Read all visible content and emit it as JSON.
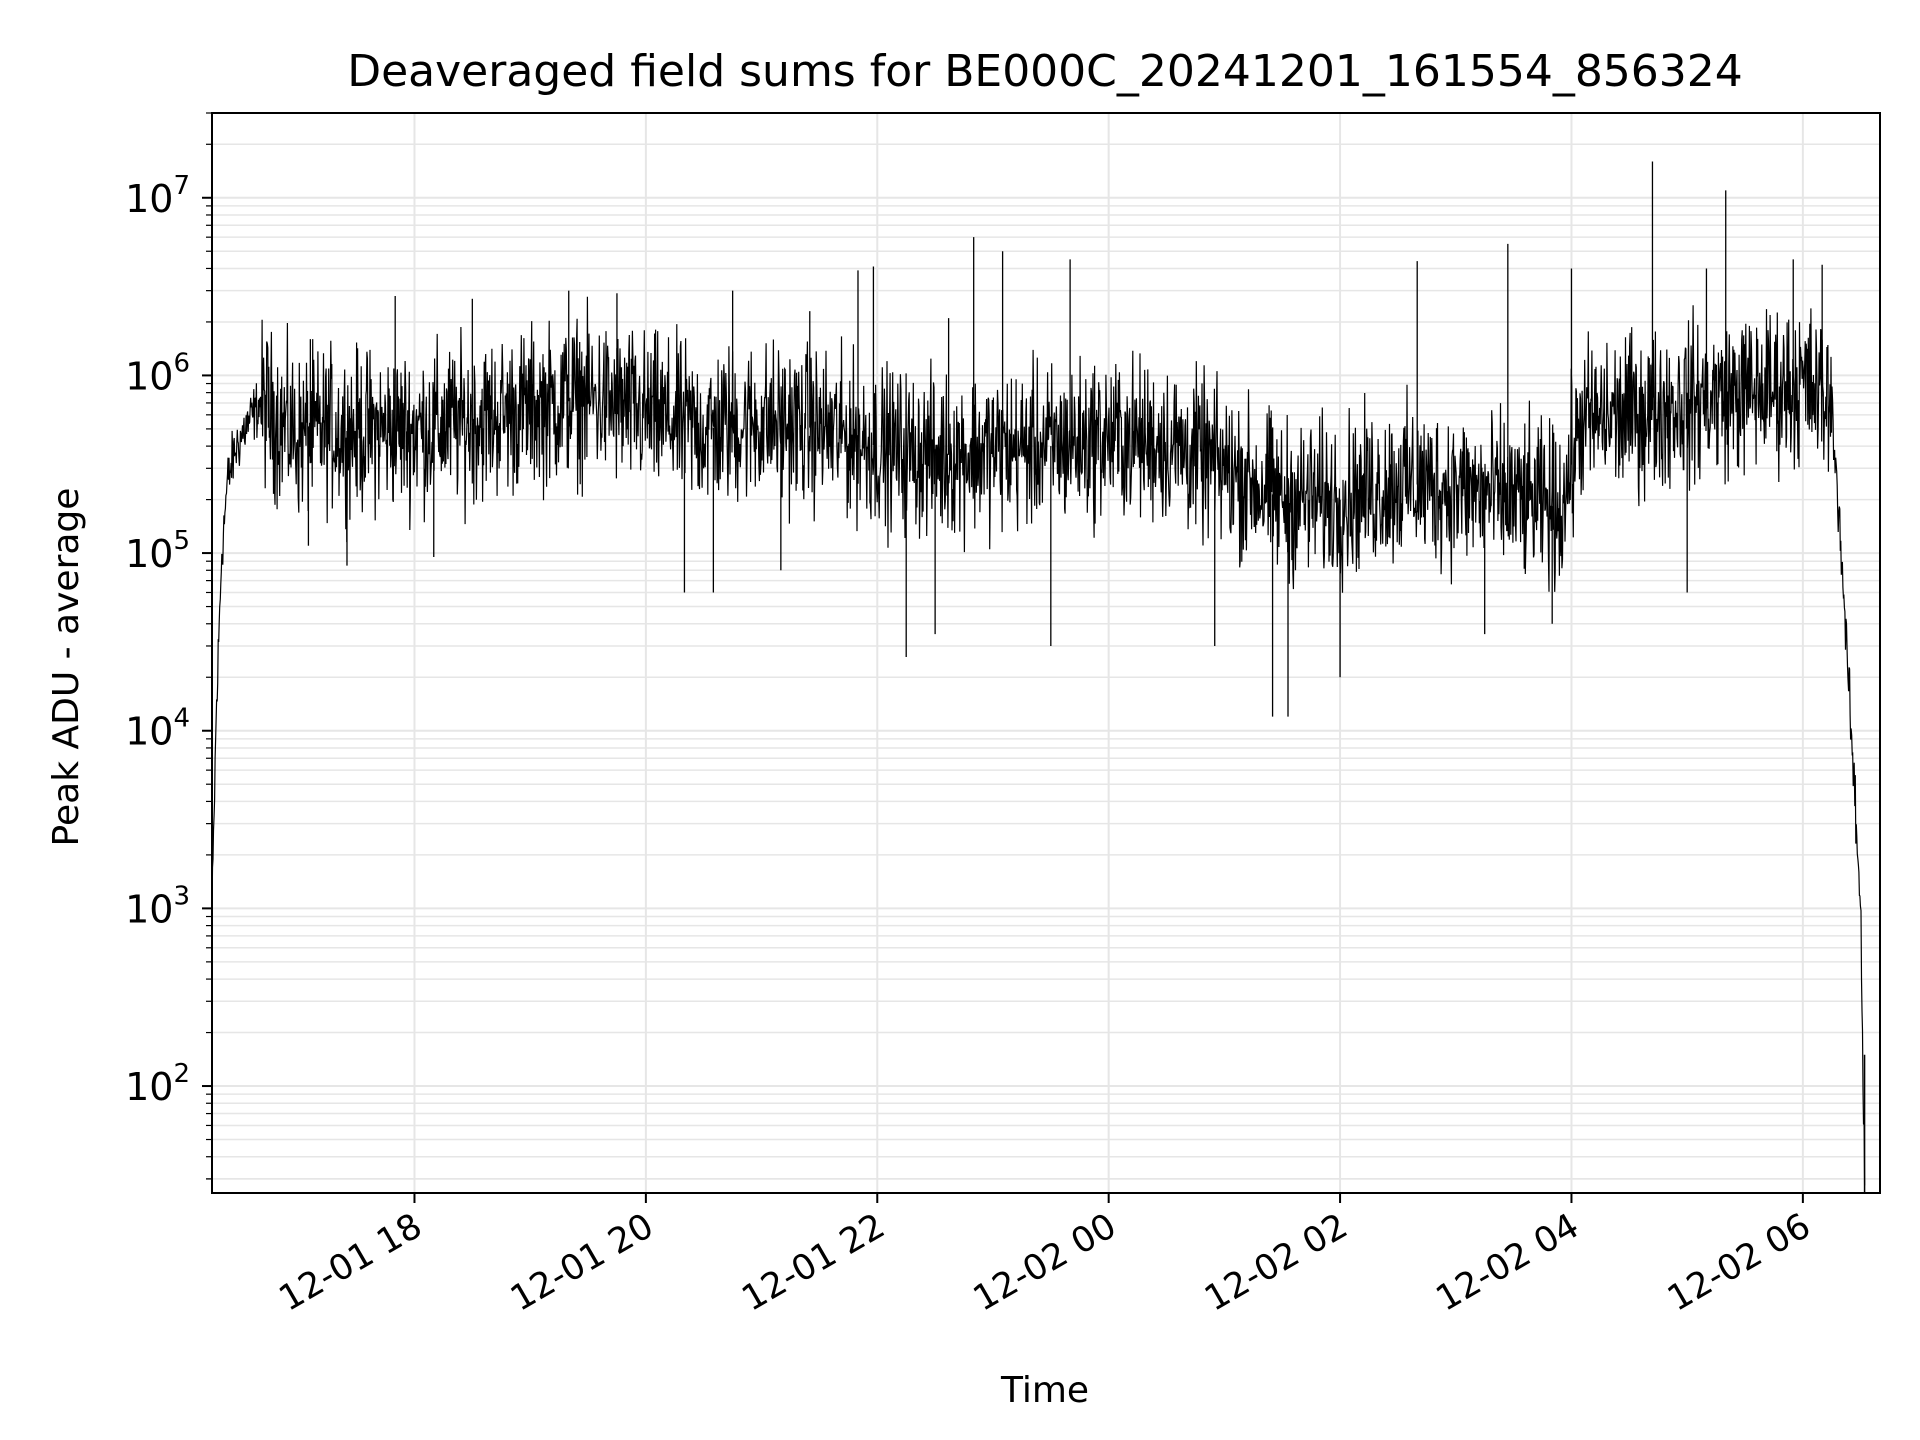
{
  "chart_data": {
    "type": "line",
    "title": "Deaveraged field sums for BE000C_20241201_161554_856324",
    "xlabel": "Time",
    "ylabel": "Peak ADU - average",
    "yscale": "log",
    "ylim": [
      25,
      30000000
    ],
    "xlim": [
      "2024-12-01 16:15",
      "2024-12-02 06:40"
    ],
    "grid": true,
    "line_color": "#000000",
    "grid_color": "#e6e6e6",
    "x_ticks": [
      {
        "value": "2024-12-01 18:00",
        "label": "12-01 18"
      },
      {
        "value": "2024-12-01 20:00",
        "label": "12-01 20"
      },
      {
        "value": "2024-12-01 22:00",
        "label": "12-01 22"
      },
      {
        "value": "2024-12-02 00:00",
        "label": "12-02 00"
      },
      {
        "value": "2024-12-02 02:00",
        "label": "12-02 02"
      },
      {
        "value": "2024-12-02 04:00",
        "label": "12-02 04"
      },
      {
        "value": "2024-12-02 06:00",
        "label": "12-02 06"
      }
    ],
    "y_ticks": [
      {
        "value": 100,
        "base": "10",
        "exp": "2"
      },
      {
        "value": 1000,
        "base": "10",
        "exp": "3"
      },
      {
        "value": 10000,
        "base": "10",
        "exp": "4"
      },
      {
        "value": 100000,
        "base": "10",
        "exp": "5"
      },
      {
        "value": 1000000,
        "base": "10",
        "exp": "6"
      },
      {
        "value": 10000000,
        "base": "10",
        "exp": "7"
      }
    ],
    "series": [
      {
        "x": [
          "2024-12-01 16:15",
          "2024-12-01 16:17",
          "2024-12-01 16:20",
          "2024-12-01 16:23",
          "2024-12-01 16:27",
          "2024-12-01 16:32",
          "2024-12-01 16:40",
          "2024-12-01 16:50",
          "2024-12-01 17:00",
          "2024-12-01 17:15",
          "2024-12-01 17:30",
          "2024-12-01 18:00",
          "2024-12-01 18:30",
          "2024-12-01 19:00",
          "2024-12-01 19:30",
          "2024-12-01 20:00",
          "2024-12-01 20:30",
          "2024-12-01 21:00",
          "2024-12-01 21:30",
          "2024-12-01 22:00",
          "2024-12-01 22:30",
          "2024-12-01 23:00",
          "2024-12-01 23:30",
          "2024-12-02 00:00",
          "2024-12-02 00:30",
          "2024-12-02 01:00",
          "2024-12-02 01:30",
          "2024-12-02 02:00",
          "2024-12-02 02:30",
          "2024-12-02 03:00",
          "2024-12-02 03:30",
          "2024-12-02 03:55",
          "2024-12-02 04:05",
          "2024-12-02 04:30",
          "2024-12-02 05:00",
          "2024-12-02 05:30",
          "2024-12-02 06:00",
          "2024-12-02 06:15",
          "2024-12-02 06:20",
          "2024-12-02 06:25",
          "2024-12-02 06:30",
          "2024-12-02 06:32"
        ],
        "y": [
          900,
          10000,
          100000,
          250000,
          380000,
          500000,
          700000,
          550000,
          450000,
          500000,
          480000,
          500000,
          550000,
          650000,
          750000,
          600000,
          500000,
          550000,
          500000,
          400000,
          350000,
          380000,
          400000,
          450000,
          420000,
          300000,
          200000,
          200000,
          250000,
          230000,
          200000,
          180000,
          550000,
          600000,
          700000,
          800000,
          900000,
          700000,
          100000,
          10000,
          1000,
          30
        ]
      }
    ],
    "spikes": [
      {
        "x": "2024-12-01 17:06",
        "y": 1600000
      },
      {
        "x": "2024-12-01 17:05",
        "y": 110000
      },
      {
        "x": "2024-12-01 17:25",
        "y": 85000
      },
      {
        "x": "2024-12-01 17:50",
        "y": 2800000
      },
      {
        "x": "2024-12-01 18:10",
        "y": 95000
      },
      {
        "x": "2024-12-01 18:30",
        "y": 2700000
      },
      {
        "x": "2024-12-01 19:20",
        "y": 3000000
      },
      {
        "x": "2024-12-01 19:45",
        "y": 2900000
      },
      {
        "x": "2024-12-01 20:20",
        "y": 60000
      },
      {
        "x": "2024-12-01 20:35",
        "y": 60000
      },
      {
        "x": "2024-12-01 20:45",
        "y": 3000000
      },
      {
        "x": "2024-12-01 21:10",
        "y": 80000
      },
      {
        "x": "2024-12-01 21:25",
        "y": 2300000
      },
      {
        "x": "2024-12-01 21:50",
        "y": 3900000
      },
      {
        "x": "2024-12-01 21:58",
        "y": 4100000
      },
      {
        "x": "2024-12-01 22:15",
        "y": 26000
      },
      {
        "x": "2024-12-01 22:30",
        "y": 35000
      },
      {
        "x": "2024-12-01 22:37",
        "y": 2100000
      },
      {
        "x": "2024-12-01 22:50",
        "y": 6000000
      },
      {
        "x": "2024-12-01 23:05",
        "y": 5000000
      },
      {
        "x": "2024-12-01 23:30",
        "y": 30000
      },
      {
        "x": "2024-12-01 23:40",
        "y": 4500000
      },
      {
        "x": "2024-12-02 00:55",
        "y": 30000
      },
      {
        "x": "2024-12-02 01:25",
        "y": 12000
      },
      {
        "x": "2024-12-02 01:33",
        "y": 12000
      },
      {
        "x": "2024-12-02 02:00",
        "y": 20000
      },
      {
        "x": "2024-12-02 02:40",
        "y": 4400000
      },
      {
        "x": "2024-12-02 03:15",
        "y": 35000
      },
      {
        "x": "2024-12-02 03:27",
        "y": 5500000
      },
      {
        "x": "2024-12-02 03:50",
        "y": 40000
      },
      {
        "x": "2024-12-02 04:00",
        "y": 4000000
      },
      {
        "x": "2024-12-02 04:42",
        "y": 16000000
      },
      {
        "x": "2024-12-02 05:10",
        "y": 4000000
      },
      {
        "x": "2024-12-02 05:20",
        "y": 11000000
      },
      {
        "x": "2024-12-02 05:00",
        "y": 60000
      },
      {
        "x": "2024-12-02 05:55",
        "y": 4500000
      },
      {
        "x": "2024-12-02 06:10",
        "y": 4200000
      }
    ]
  }
}
